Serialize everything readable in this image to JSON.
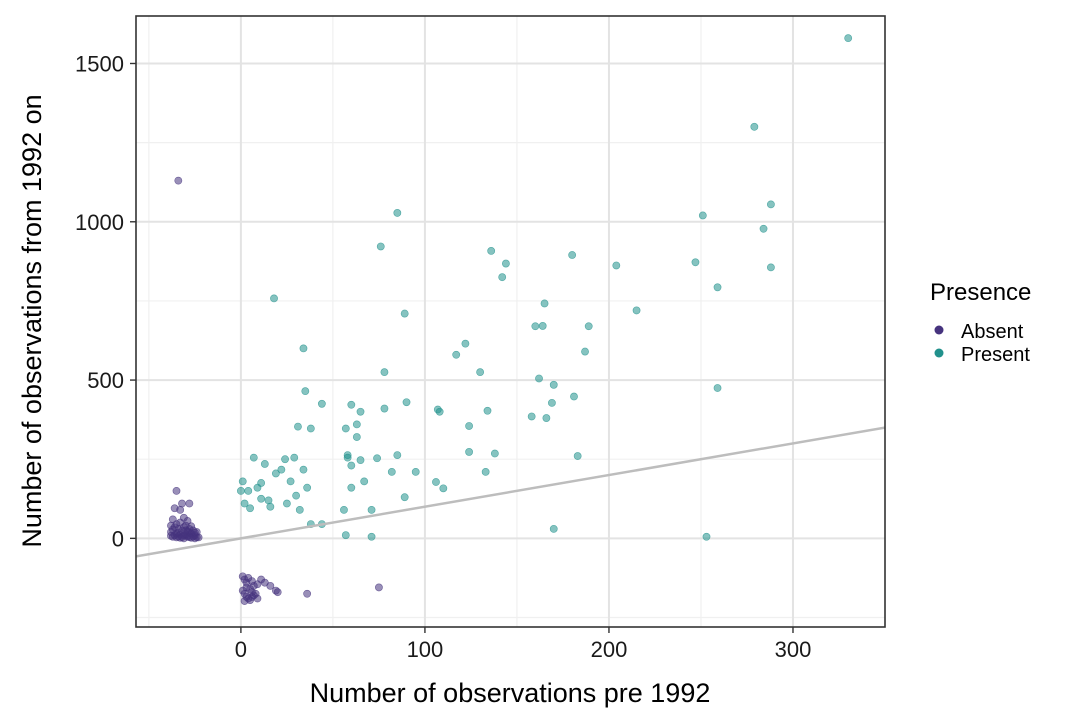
{
  "chart_data": {
    "type": "scatter",
    "xlabel": "Number of observations pre 1992",
    "ylabel": "Number of observations from 1992 on",
    "xlim": [
      -57,
      350
    ],
    "ylim": [
      -280,
      1650
    ],
    "x_ticks": [
      0,
      100,
      200,
      300
    ],
    "y_ticks": [
      0,
      500,
      1000,
      1500
    ],
    "grid": true,
    "legend": {
      "title": "Presence",
      "position": "right"
    },
    "reference_line": {
      "type": "y=x",
      "color": "#bdbdbd"
    },
    "series": [
      {
        "name": "Absent",
        "color": "#46337e",
        "points": [
          [
            -34,
            1130
          ],
          [
            -35,
            150
          ],
          [
            -32,
            110
          ],
          [
            -28,
            110
          ],
          [
            -36,
            95
          ],
          [
            -33,
            90
          ],
          [
            -37,
            60
          ],
          [
            -31,
            65
          ],
          [
            -29,
            55
          ],
          [
            -38,
            40
          ],
          [
            -36,
            35
          ],
          [
            -34,
            30
          ],
          [
            -32,
            25
          ],
          [
            -30,
            40
          ],
          [
            -28,
            30
          ],
          [
            -26,
            25
          ],
          [
            -24,
            20
          ],
          [
            -38,
            20
          ],
          [
            -35,
            15
          ],
          [
            -33,
            12
          ],
          [
            -31,
            10
          ],
          [
            -29,
            8
          ],
          [
            -27,
            15
          ],
          [
            -25,
            10
          ],
          [
            -37,
            5
          ],
          [
            -35,
            3
          ],
          [
            -33,
            2
          ],
          [
            -31,
            0
          ],
          [
            -29,
            5
          ],
          [
            -27,
            2
          ],
          [
            -25,
            0
          ],
          [
            -38,
            8
          ],
          [
            -36,
            10
          ],
          [
            -34,
            6
          ],
          [
            -32,
            4
          ],
          [
            -30,
            12
          ],
          [
            -28,
            18
          ],
          [
            -26,
            6
          ],
          [
            -24,
            4
          ],
          [
            -23,
            3
          ],
          [
            -37,
            28
          ],
          [
            -35,
            45
          ],
          [
            -33,
            50
          ],
          [
            -31,
            35
          ],
          [
            -29,
            22
          ],
          [
            -27,
            38
          ],
          [
            -25,
            18
          ],
          [
            -34,
            18
          ],
          [
            -30,
            25
          ],
          [
            -28,
            4
          ],
          [
            1,
            -120
          ],
          [
            2,
            -130
          ],
          [
            3,
            -140
          ],
          [
            4,
            -125
          ],
          [
            6,
            -135
          ],
          [
            9,
            -145
          ],
          [
            11,
            -130
          ],
          [
            13,
            -140
          ],
          [
            16,
            -150
          ],
          [
            1,
            -165
          ],
          [
            2,
            -175
          ],
          [
            3,
            -185
          ],
          [
            4,
            -190
          ],
          [
            5,
            -195
          ],
          [
            6,
            -170
          ],
          [
            7,
            -180
          ],
          [
            8,
            -175
          ],
          [
            9,
            -190
          ],
          [
            3,
            -155
          ],
          [
            5,
            -160
          ],
          [
            7,
            -150
          ],
          [
            19,
            -165
          ],
          [
            20,
            -170
          ],
          [
            36,
            -175
          ],
          [
            75,
            -155
          ],
          [
            2,
            -198
          ],
          [
            6,
            -185
          ]
        ]
      },
      {
        "name": "Present",
        "color": "#21918c",
        "points": [
          [
            330,
            1580
          ],
          [
            279,
            1300
          ],
          [
            251,
            1020
          ],
          [
            288,
            1055
          ],
          [
            284,
            978
          ],
          [
            247,
            872
          ],
          [
            288,
            856
          ],
          [
            259,
            793
          ],
          [
            215,
            720
          ],
          [
            204,
            862
          ],
          [
            180,
            895
          ],
          [
            189,
            670
          ],
          [
            187,
            590
          ],
          [
            165,
            742
          ],
          [
            160,
            670
          ],
          [
            164,
            671
          ],
          [
            170,
            485
          ],
          [
            162,
            505
          ],
          [
            181,
            448
          ],
          [
            169,
            428
          ],
          [
            158,
            385
          ],
          [
            166,
            380
          ],
          [
            183,
            260
          ],
          [
            170,
            30
          ],
          [
            253,
            5
          ],
          [
            259,
            475
          ],
          [
            85,
            1028
          ],
          [
            76,
            922
          ],
          [
            136,
            908
          ],
          [
            144,
            868
          ],
          [
            142,
            825
          ],
          [
            89,
            710
          ],
          [
            18,
            758
          ],
          [
            34,
            600
          ],
          [
            117,
            580
          ],
          [
            122,
            615
          ],
          [
            130,
            525
          ],
          [
            78,
            525
          ],
          [
            35,
            465
          ],
          [
            60,
            422
          ],
          [
            65,
            400
          ],
          [
            44,
            425
          ],
          [
            90,
            430
          ],
          [
            107,
            407
          ],
          [
            108,
            400
          ],
          [
            134,
            403
          ],
          [
            124,
            355
          ],
          [
            63,
            360
          ],
          [
            57,
            347
          ],
          [
            38,
            347
          ],
          [
            31,
            353
          ],
          [
            63,
            320
          ],
          [
            58,
            263
          ],
          [
            65,
            247
          ],
          [
            74,
            253
          ],
          [
            85,
            263
          ],
          [
            106,
            178
          ],
          [
            110,
            158
          ],
          [
            124,
            273
          ],
          [
            138,
            268
          ],
          [
            133,
            210
          ],
          [
            95,
            210
          ],
          [
            82,
            210
          ],
          [
            60,
            230
          ],
          [
            58,
            255
          ],
          [
            67,
            180
          ],
          [
            60,
            160
          ],
          [
            78,
            410
          ],
          [
            71,
            90
          ],
          [
            89,
            130
          ],
          [
            56,
            90
          ],
          [
            57,
            10
          ],
          [
            71,
            5
          ],
          [
            34,
            217
          ],
          [
            29,
            255
          ],
          [
            27,
            180
          ],
          [
            24,
            250
          ],
          [
            19,
            205
          ],
          [
            22,
            217
          ],
          [
            13,
            235
          ],
          [
            7,
            255
          ],
          [
            11,
            175
          ],
          [
            9,
            160
          ],
          [
            1,
            180
          ],
          [
            0,
            150
          ],
          [
            4,
            150
          ],
          [
            11,
            125
          ],
          [
            15,
            120
          ],
          [
            30,
            135
          ],
          [
            36,
            160
          ],
          [
            16,
            100
          ],
          [
            25,
            110
          ],
          [
            32,
            90
          ],
          [
            44,
            45
          ],
          [
            38,
            45
          ],
          [
            2,
            110
          ],
          [
            5,
            95
          ]
        ]
      }
    ]
  }
}
